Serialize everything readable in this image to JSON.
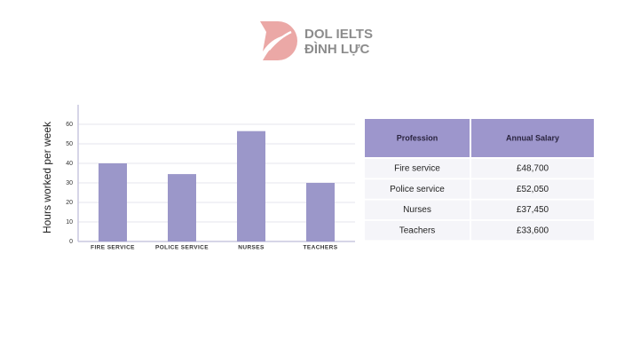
{
  "logo": {
    "line1": "DOL IELTS",
    "line2": "ĐÌNH LỰC"
  },
  "chart_data": {
    "type": "bar",
    "y_label": "Hours worked per week",
    "categories": [
      "FIRE SERVICE",
      "POLICE SERVICE",
      "NURSES",
      "TEACHERS"
    ],
    "values": [
      40,
      34.5,
      56.5,
      30
    ],
    "color": "#9b97c9",
    "ylim": [
      0,
      70
    ],
    "yticks": [
      0,
      10,
      20,
      30,
      40,
      50,
      60
    ],
    "grid": true
  },
  "table": {
    "header": [
      "Profession",
      "Annual Salary"
    ],
    "rows": [
      [
        "Fire service",
        "£48,700"
      ],
      [
        "Police service",
        "£52,050"
      ],
      [
        "Nurses",
        "£37,450"
      ],
      [
        "Teachers",
        "£33,600"
      ]
    ]
  }
}
